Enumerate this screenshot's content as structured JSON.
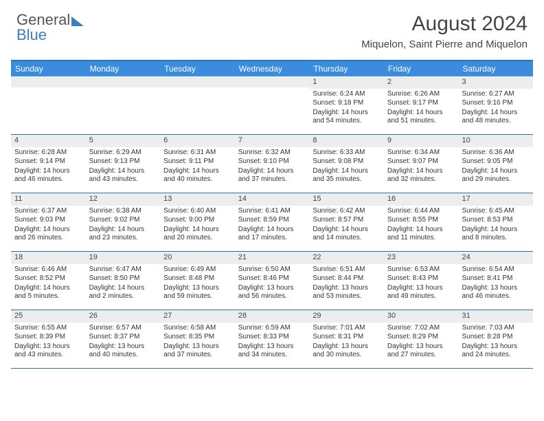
{
  "brand": {
    "part1": "General",
    "part2": "Blue"
  },
  "title": "August 2024",
  "location": "Miquelon, Saint Pierre and Miquelon",
  "colors": {
    "header_bg": "#3a8dde",
    "accent": "#2d70b5",
    "daynum_bg": "#eceded",
    "text": "#333333"
  },
  "daynames": [
    "Sunday",
    "Monday",
    "Tuesday",
    "Wednesday",
    "Thursday",
    "Friday",
    "Saturday"
  ],
  "weeks": [
    [
      {
        "n": "",
        "sr": "",
        "ss": "",
        "dl": ""
      },
      {
        "n": "",
        "sr": "",
        "ss": "",
        "dl": ""
      },
      {
        "n": "",
        "sr": "",
        "ss": "",
        "dl": ""
      },
      {
        "n": "",
        "sr": "",
        "ss": "",
        "dl": ""
      },
      {
        "n": "1",
        "sr": "Sunrise: 6:24 AM",
        "ss": "Sunset: 9:18 PM",
        "dl": "Daylight: 14 hours and 54 minutes."
      },
      {
        "n": "2",
        "sr": "Sunrise: 6:26 AM",
        "ss": "Sunset: 9:17 PM",
        "dl": "Daylight: 14 hours and 51 minutes."
      },
      {
        "n": "3",
        "sr": "Sunrise: 6:27 AM",
        "ss": "Sunset: 9:16 PM",
        "dl": "Daylight: 14 hours and 48 minutes."
      }
    ],
    [
      {
        "n": "4",
        "sr": "Sunrise: 6:28 AM",
        "ss": "Sunset: 9:14 PM",
        "dl": "Daylight: 14 hours and 46 minutes."
      },
      {
        "n": "5",
        "sr": "Sunrise: 6:29 AM",
        "ss": "Sunset: 9:13 PM",
        "dl": "Daylight: 14 hours and 43 minutes."
      },
      {
        "n": "6",
        "sr": "Sunrise: 6:31 AM",
        "ss": "Sunset: 9:11 PM",
        "dl": "Daylight: 14 hours and 40 minutes."
      },
      {
        "n": "7",
        "sr": "Sunrise: 6:32 AM",
        "ss": "Sunset: 9:10 PM",
        "dl": "Daylight: 14 hours and 37 minutes."
      },
      {
        "n": "8",
        "sr": "Sunrise: 6:33 AM",
        "ss": "Sunset: 9:08 PM",
        "dl": "Daylight: 14 hours and 35 minutes."
      },
      {
        "n": "9",
        "sr": "Sunrise: 6:34 AM",
        "ss": "Sunset: 9:07 PM",
        "dl": "Daylight: 14 hours and 32 minutes."
      },
      {
        "n": "10",
        "sr": "Sunrise: 6:36 AM",
        "ss": "Sunset: 9:05 PM",
        "dl": "Daylight: 14 hours and 29 minutes."
      }
    ],
    [
      {
        "n": "11",
        "sr": "Sunrise: 6:37 AM",
        "ss": "Sunset: 9:03 PM",
        "dl": "Daylight: 14 hours and 26 minutes."
      },
      {
        "n": "12",
        "sr": "Sunrise: 6:38 AM",
        "ss": "Sunset: 9:02 PM",
        "dl": "Daylight: 14 hours and 23 minutes."
      },
      {
        "n": "13",
        "sr": "Sunrise: 6:40 AM",
        "ss": "Sunset: 9:00 PM",
        "dl": "Daylight: 14 hours and 20 minutes."
      },
      {
        "n": "14",
        "sr": "Sunrise: 6:41 AM",
        "ss": "Sunset: 8:59 PM",
        "dl": "Daylight: 14 hours and 17 minutes."
      },
      {
        "n": "15",
        "sr": "Sunrise: 6:42 AM",
        "ss": "Sunset: 8:57 PM",
        "dl": "Daylight: 14 hours and 14 minutes."
      },
      {
        "n": "16",
        "sr": "Sunrise: 6:44 AM",
        "ss": "Sunset: 8:55 PM",
        "dl": "Daylight: 14 hours and 11 minutes."
      },
      {
        "n": "17",
        "sr": "Sunrise: 6:45 AM",
        "ss": "Sunset: 8:53 PM",
        "dl": "Daylight: 14 hours and 8 minutes."
      }
    ],
    [
      {
        "n": "18",
        "sr": "Sunrise: 6:46 AM",
        "ss": "Sunset: 8:52 PM",
        "dl": "Daylight: 14 hours and 5 minutes."
      },
      {
        "n": "19",
        "sr": "Sunrise: 6:47 AM",
        "ss": "Sunset: 8:50 PM",
        "dl": "Daylight: 14 hours and 2 minutes."
      },
      {
        "n": "20",
        "sr": "Sunrise: 6:49 AM",
        "ss": "Sunset: 8:48 PM",
        "dl": "Daylight: 13 hours and 59 minutes."
      },
      {
        "n": "21",
        "sr": "Sunrise: 6:50 AM",
        "ss": "Sunset: 8:46 PM",
        "dl": "Daylight: 13 hours and 56 minutes."
      },
      {
        "n": "22",
        "sr": "Sunrise: 6:51 AM",
        "ss": "Sunset: 8:44 PM",
        "dl": "Daylight: 13 hours and 53 minutes."
      },
      {
        "n": "23",
        "sr": "Sunrise: 6:53 AM",
        "ss": "Sunset: 8:43 PM",
        "dl": "Daylight: 13 hours and 49 minutes."
      },
      {
        "n": "24",
        "sr": "Sunrise: 6:54 AM",
        "ss": "Sunset: 8:41 PM",
        "dl": "Daylight: 13 hours and 46 minutes."
      }
    ],
    [
      {
        "n": "25",
        "sr": "Sunrise: 6:55 AM",
        "ss": "Sunset: 8:39 PM",
        "dl": "Daylight: 13 hours and 43 minutes."
      },
      {
        "n": "26",
        "sr": "Sunrise: 6:57 AM",
        "ss": "Sunset: 8:37 PM",
        "dl": "Daylight: 13 hours and 40 minutes."
      },
      {
        "n": "27",
        "sr": "Sunrise: 6:58 AM",
        "ss": "Sunset: 8:35 PM",
        "dl": "Daylight: 13 hours and 37 minutes."
      },
      {
        "n": "28",
        "sr": "Sunrise: 6:59 AM",
        "ss": "Sunset: 8:33 PM",
        "dl": "Daylight: 13 hours and 34 minutes."
      },
      {
        "n": "29",
        "sr": "Sunrise: 7:01 AM",
        "ss": "Sunset: 8:31 PM",
        "dl": "Daylight: 13 hours and 30 minutes."
      },
      {
        "n": "30",
        "sr": "Sunrise: 7:02 AM",
        "ss": "Sunset: 8:29 PM",
        "dl": "Daylight: 13 hours and 27 minutes."
      },
      {
        "n": "31",
        "sr": "Sunrise: 7:03 AM",
        "ss": "Sunset: 8:28 PM",
        "dl": "Daylight: 13 hours and 24 minutes."
      }
    ]
  ]
}
